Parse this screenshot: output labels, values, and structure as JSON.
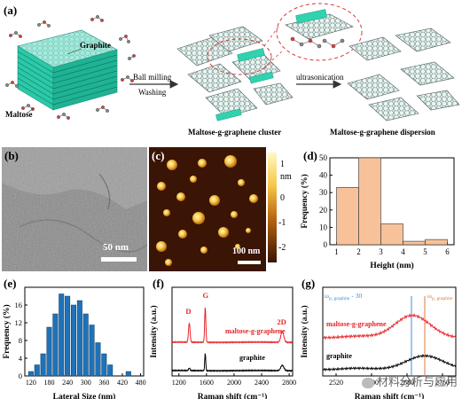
{
  "panels": {
    "a": {
      "label": "(a)",
      "graphite": "Graphite",
      "maltose": "Maltose",
      "step1_top": "Ball milling",
      "step1_bottom": "Washing",
      "cluster": "Maltose-g-graphene cluster",
      "step2": "ultrasonication",
      "dispersion": "Maltose-g-graphene dispersion"
    },
    "b": {
      "label": "(b)",
      "scale": "50 nm"
    },
    "c": {
      "label": "(c)",
      "scale": "100 nm",
      "unit": "nm",
      "ticks": [
        "1",
        "0",
        "-1",
        "-2"
      ]
    },
    "d": {
      "label": "(d)"
    },
    "e": {
      "label": "(e)"
    },
    "f": {
      "label": "(f)"
    },
    "g": {
      "label": "(g)"
    }
  },
  "watermark": "材料分析与应用",
  "colors": {
    "graphene": "#2fd3b0",
    "bar_d": "#f7c29a",
    "bar_e": "#1f72b8",
    "red": "#e8252a",
    "blue_line": "#3f8fd6",
    "orange_line": "#e07a3c"
  },
  "chart_data": [
    {
      "panel": "d",
      "type": "bar",
      "x": [
        1.5,
        2.5,
        3.5,
        4.5,
        5.5
      ],
      "values": [
        33,
        50,
        12,
        2,
        3
      ],
      "xlabel": "Height (nm)",
      "ylabel": "Frequency (%)",
      "xlim": [
        0.7,
        6.3
      ],
      "ylim": [
        0,
        50
      ],
      "xticks": [
        "1",
        "2",
        "3",
        "4",
        "5",
        "6"
      ],
      "yticks": [
        "0",
        "10",
        "20",
        "30",
        "40",
        "50"
      ]
    },
    {
      "panel": "e",
      "type": "bar",
      "x": [
        120,
        140,
        160,
        180,
        200,
        220,
        240,
        260,
        280,
        300,
        320,
        340,
        360,
        380,
        400,
        420,
        440,
        460
      ],
      "values": [
        1,
        2.5,
        5,
        11,
        14,
        18.5,
        18,
        16,
        17,
        14,
        11.5,
        7.5,
        5,
        2.5,
        0,
        0,
        1,
        0
      ],
      "xlabel": "Lateral Size (nm)",
      "ylabel": "Frequency (%)",
      "xlim": [
        100,
        490
      ],
      "ylim": [
        0,
        20
      ],
      "xticks": [
        "120",
        "180",
        "240",
        "300",
        "360",
        "420",
        "480"
      ],
      "yticks": [
        "0",
        "4",
        "8",
        "12",
        "16"
      ]
    },
    {
      "panel": "f",
      "type": "line",
      "xlabel": "Raman shift (cm⁻¹)",
      "ylabel": "Intensity (a.u.)",
      "xlim": [
        1100,
        2850
      ],
      "xticks": [
        "1200",
        "1600",
        "2000",
        "2400",
        "2800"
      ],
      "series": [
        {
          "name": "maltose-g-graphene",
          "peaks": [
            [
              "D",
              1350
            ],
            [
              "G",
              1582
            ],
            [
              "2D",
              2700
            ]
          ]
        },
        {
          "name": "graphite"
        }
      ]
    },
    {
      "panel": "g",
      "type": "line",
      "xlabel": "Raman shift (cm⁻¹)",
      "ylabel": "Intensity (a.u.)",
      "xlim": [
        2490,
        2790
      ],
      "xticks": [
        "2520",
        "2600",
        "2680",
        "2760"
      ],
      "lines": [
        {
          "label": "ω",
          "sub": "p, graphite",
          "text": " - 30"
        },
        {
          "label": "ω",
          "sub": "p, graphite"
        }
      ],
      "series": [
        {
          "name": "maltose-g-graphene"
        },
        {
          "name": "graphite"
        }
      ]
    }
  ]
}
